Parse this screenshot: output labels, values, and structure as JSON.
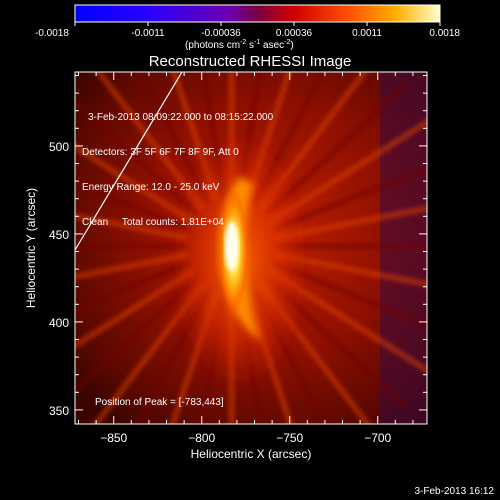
{
  "chart_data": {
    "type": "heatmap",
    "title": "Reconstructed RHESSI Image",
    "xlabel": "Heliocentric X (arcsec)",
    "ylabel": "Heliocentric Y (arcsec)",
    "xlim": [
      -872,
      -672
    ],
    "ylim": [
      342,
      542
    ],
    "x_ticks": [
      -850,
      -800,
      -750,
      -700
    ],
    "y_ticks": [
      350,
      400,
      450,
      500
    ],
    "colorbar": {
      "range": [
        -0.0018,
        0.0018
      ],
      "ticks": [
        "-0.0018",
        "-0.0011",
        "-0.00036",
        "0.00036",
        "0.0011",
        "0.0018"
      ],
      "units_prefix": "(photons cm",
      "units_exp1": "-2",
      "units_mid1": " s",
      "units_exp2": "-1",
      "units_mid2": " asec",
      "units_exp3": "-2",
      "units_suffix": ")"
    },
    "info_lines": [
      "3-Feb-2013 08:09:22.000 to 08:15:22.000",
      "Detectors: 3F 5F 6F 7F 8F 9F, Att 0",
      "Energy Range: 12.0 - 25.0 keV",
      "Clean     Total counts: 1.81E+04"
    ],
    "peak_label": "Position of Peak = [-783,443]",
    "peak": [
      -783,
      443
    ],
    "colormap": "RHESSI red-temperature (black-red-orange-yellow-white)",
    "grid": false
  },
  "footer_date": "3-Feb-2013 16:12"
}
